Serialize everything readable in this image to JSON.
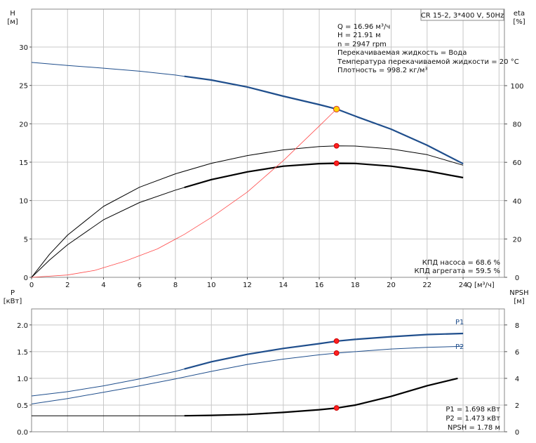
{
  "chart_data": [
    {
      "type": "line",
      "title": "CR 15-2, 3*400 V, 50Hz",
      "x_axis": {
        "label": "Q [м³/ч]",
        "range": [
          0,
          24
        ],
        "ticks": [
          "0",
          "2",
          "4",
          "6",
          "8",
          "10",
          "12",
          "14",
          "16",
          "18",
          "20",
          "22",
          "24"
        ]
      },
      "y_left": {
        "label_top": "H",
        "label_unit": "[м]",
        "range": [
          0,
          30
        ],
        "ticks": [
          "0",
          "5",
          "10",
          "15",
          "20",
          "25",
          "30"
        ]
      },
      "y_right": {
        "label_top": "eta",
        "label_unit": "[%]",
        "range": [
          0,
          100
        ],
        "ticks": [
          "0",
          "20",
          "40",
          "60",
          "80",
          "100"
        ]
      },
      "grid": true,
      "info_lines": [
        "Q = 16.96 м³/ч",
        "H = 21.91 м",
        "n = 2947 rpm",
        "Перекачиваемая жидкость = Вода",
        "Температура перекачиваемой жидкости = 20 °C",
        "Плотность = 998.2 кг/м³"
      ],
      "efficiency_lines": [
        "КПД насоса = 68.6 %",
        "КПД агрегата = 59.5 %"
      ],
      "series": [
        {
          "key": "H",
          "axis": "left",
          "color": "#1f4e8c",
          "x": [
            0,
            2,
            4,
            6,
            8,
            10,
            12,
            14,
            16,
            17,
            18,
            20,
            22,
            24
          ],
          "y": [
            28.0,
            27.6,
            27.25,
            26.85,
            26.35,
            25.7,
            24.8,
            23.6,
            22.5,
            21.9,
            21.0,
            19.3,
            17.2,
            14.8
          ],
          "bold_from": 8.5
        },
        {
          "key": "eta_pump",
          "axis": "right",
          "color": "#000000",
          "x": [
            0,
            1,
            2,
            4,
            6,
            8,
            10,
            12,
            14,
            16,
            17,
            18,
            20,
            22,
            24
          ],
          "y": [
            0,
            12,
            22,
            37,
            47,
            54,
            59.5,
            63.5,
            66.5,
            68.2,
            68.6,
            68.5,
            67,
            64,
            58.5
          ]
        },
        {
          "key": "eta_unit",
          "axis": "right",
          "color": "#000000",
          "x": [
            0,
            1,
            2,
            4,
            6,
            8,
            10,
            12,
            14,
            16,
            17,
            18,
            20,
            22,
            24
          ],
          "y": [
            0,
            9,
            17,
            30,
            39,
            45.5,
            51,
            55,
            58,
            59.3,
            59.5,
            59.4,
            58,
            55.5,
            52
          ],
          "bold_from": 8.5
        },
        {
          "key": "system",
          "axis": "left",
          "color": "#ff4a4a",
          "x": [
            0,
            2,
            3.5,
            5.2,
            7,
            8.5,
            10,
            12,
            14,
            16,
            16.96
          ],
          "y": [
            0,
            0.3,
            0.9,
            2.1,
            3.7,
            5.6,
            7.8,
            11.1,
            15.2,
            19.7,
            21.91
          ]
        }
      ],
      "points": [
        {
          "key": "duty",
          "axis": "left",
          "x": 16.96,
          "y": 21.91,
          "fill": "#ffd400",
          "stroke": "#d13a3a"
        },
        {
          "key": "eta_pump_pt",
          "axis": "right",
          "x": 16.96,
          "y": 68.6,
          "fill": "#ff2020",
          "stroke": "#cc0000"
        },
        {
          "key": "eta_unit_pt",
          "axis": "right",
          "x": 16.96,
          "y": 59.5,
          "fill": "#ff2020",
          "stroke": "#cc0000"
        }
      ]
    },
    {
      "type": "line",
      "x_axis": {
        "range": [
          0,
          24
        ]
      },
      "y_left": {
        "label_top": "P",
        "label_unit": "[кВт]",
        "range": [
          0,
          2.3
        ],
        "ticks": [
          "0.0",
          "0.5",
          "1.0",
          "1.5",
          "2.0"
        ]
      },
      "y_right": {
        "label_top": "NPSH",
        "label_unit": "[м]",
        "range": [
          0,
          9.2
        ],
        "ticks": [
          "0",
          "2",
          "4",
          "6",
          "8"
        ]
      },
      "grid": true,
      "info_lines": [
        "P1 = 1.698 кВт",
        "P2 = 1.473 кВт",
        "NPSH = 1.78 м"
      ],
      "series": [
        {
          "key": "P1",
          "name": "P1",
          "axis": "left",
          "color": "#1f4e8c",
          "x": [
            0,
            2,
            4,
            6,
            8,
            10,
            12,
            14,
            16,
            17,
            18,
            20,
            22,
            24
          ],
          "y": [
            0.67,
            0.75,
            0.86,
            0.99,
            1.13,
            1.31,
            1.45,
            1.56,
            1.65,
            1.698,
            1.73,
            1.78,
            1.82,
            1.84
          ],
          "bold_from": 8.5
        },
        {
          "key": "P2",
          "name": "P2",
          "axis": "left",
          "color": "#1f4e8c",
          "x": [
            0,
            2,
            4,
            6,
            8,
            10,
            12,
            14,
            16,
            17,
            18,
            20,
            22,
            24
          ],
          "y": [
            0.52,
            0.62,
            0.74,
            0.86,
            0.99,
            1.13,
            1.26,
            1.36,
            1.44,
            1.473,
            1.5,
            1.55,
            1.58,
            1.6
          ]
        },
        {
          "key": "NPSH",
          "axis": "right",
          "color": "#000000",
          "x": [
            0,
            4,
            8,
            8.5,
            10,
            12,
            14,
            16,
            17,
            18,
            20,
            22,
            23.7
          ],
          "y": [
            1.2,
            1.2,
            1.2,
            1.2,
            1.23,
            1.3,
            1.45,
            1.65,
            1.78,
            2.0,
            2.65,
            3.45,
            4.0
          ],
          "bold_from": 8.5
        }
      ],
      "points": [
        {
          "key": "P1_pt",
          "axis": "left",
          "x": 16.96,
          "y": 1.698,
          "fill": "#ff2020",
          "stroke": "#cc0000"
        },
        {
          "key": "P2_pt",
          "axis": "left",
          "x": 16.96,
          "y": 1.473,
          "fill": "#ff2020",
          "stroke": "#cc0000"
        },
        {
          "key": "NPSH_pt",
          "axis": "right",
          "x": 16.96,
          "y": 1.78,
          "fill": "#ff2020",
          "stroke": "#cc0000"
        }
      ]
    }
  ]
}
